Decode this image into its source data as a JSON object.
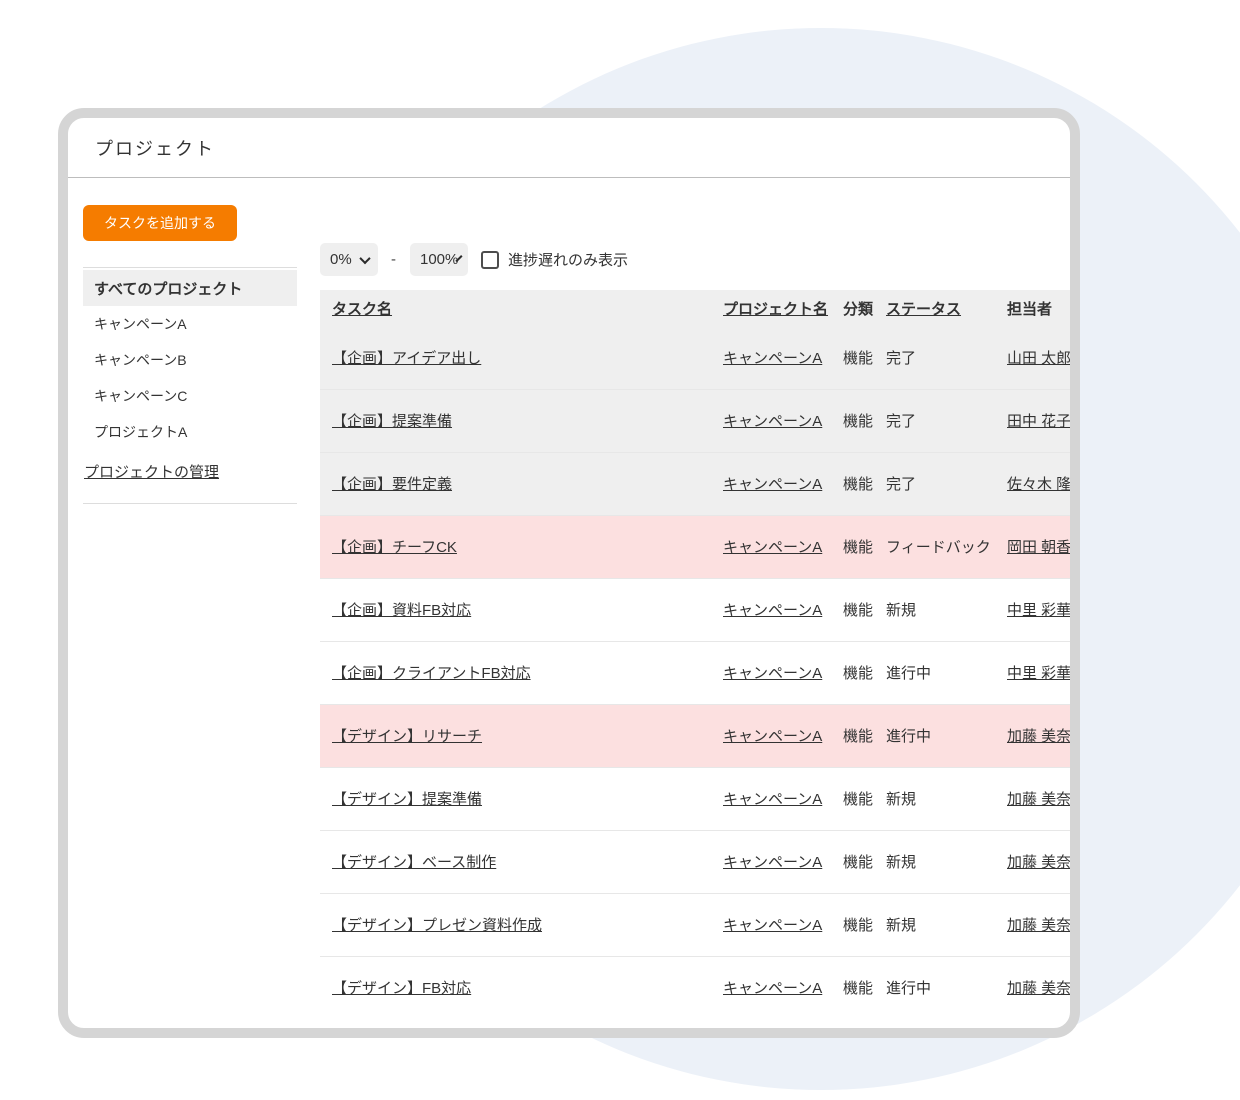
{
  "window": {
    "title": "プロジェクト"
  },
  "sidebar": {
    "add_task_label": "タスクを追加する",
    "items": [
      {
        "label": "すべてのプロジェクト",
        "selected": true
      },
      {
        "label": "キャンペーンA",
        "selected": false
      },
      {
        "label": "キャンペーンB",
        "selected": false
      },
      {
        "label": "キャンペーンC",
        "selected": false
      },
      {
        "label": "プロジェクトA",
        "selected": false
      }
    ],
    "manage_label": "プロジェクトの管理"
  },
  "filters": {
    "min_value": "0%",
    "separator": "-",
    "max_value": "100%",
    "delayed_only_label": "進捗遅れのみ表示",
    "delayed_only_checked": false
  },
  "table": {
    "columns": [
      {
        "label": "タスク名"
      },
      {
        "label": "プロジェクト名"
      },
      {
        "label": "分類"
      },
      {
        "label": "ステータス"
      },
      {
        "label": "担当者"
      }
    ],
    "rows": [
      {
        "task": "【企画】アイデア出し",
        "project": "キャンペーンA",
        "category": "機能",
        "status": "完了",
        "assignee": "山田 太郎",
        "highlight": "done"
      },
      {
        "task": "【企画】提案準備",
        "project": "キャンペーンA",
        "category": "機能",
        "status": "完了",
        "assignee": "田中 花子",
        "highlight": "done"
      },
      {
        "task": "【企画】要件定義",
        "project": "キャンペーンA",
        "category": "機能",
        "status": "完了",
        "assignee": "佐々木 隆",
        "highlight": "done"
      },
      {
        "task": "【企画】チーフCK",
        "project": "キャンペーンA",
        "category": "機能",
        "status": "フィードバック",
        "assignee": "岡田 朝香",
        "highlight": "delayed"
      },
      {
        "task": "【企画】資料FB対応",
        "project": "キャンペーンA",
        "category": "機能",
        "status": "新規",
        "assignee": "中里 彩華",
        "highlight": "none"
      },
      {
        "task": "【企画】クライアントFB対応",
        "project": "キャンペーンA",
        "category": "機能",
        "status": "進行中",
        "assignee": "中里 彩華",
        "highlight": "none"
      },
      {
        "task": "【デザイン】リサーチ",
        "project": "キャンペーンA",
        "category": "機能",
        "status": "進行中",
        "assignee": "加藤 美奈",
        "highlight": "delayed"
      },
      {
        "task": "【デザイン】提案準備",
        "project": "キャンペーンA",
        "category": "機能",
        "status": "新規",
        "assignee": "加藤 美奈",
        "highlight": "none"
      },
      {
        "task": "【デザイン】ベース制作",
        "project": "キャンペーンA",
        "category": "機能",
        "status": "新規",
        "assignee": "加藤 美奈",
        "highlight": "none"
      },
      {
        "task": "【デザイン】プレゼン資料作成",
        "project": "キャンペーンA",
        "category": "機能",
        "status": "新規",
        "assignee": "加藤 美奈",
        "highlight": "none"
      },
      {
        "task": "【デザイン】FB対応",
        "project": "キャンペーンA",
        "category": "機能",
        "status": "進行中",
        "assignee": "加藤 美奈",
        "highlight": "none"
      }
    ]
  },
  "colors": {
    "accent_orange": "#F57C00",
    "done_row_gray": "#EFEFEF",
    "delayed_row_pink": "#FCE0E0",
    "blob_blue": "#ECF1F8",
    "window_border_gray": "#D5D5D5"
  }
}
